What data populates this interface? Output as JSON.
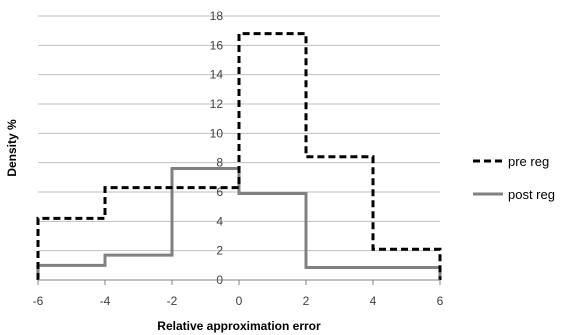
{
  "chart_data": {
    "type": "line",
    "title": "",
    "xlabel": "Relative approximation error",
    "ylabel": "Density %",
    "xlim": [
      -6,
      6
    ],
    "ylim": [
      0,
      18
    ],
    "x_ticks": [
      "-6",
      "-4",
      "-2",
      "0",
      "2",
      "4",
      "6"
    ],
    "y_ticks": [
      "0",
      "2",
      "4",
      "6",
      "8",
      "10",
      "12",
      "14",
      "16",
      "18"
    ],
    "grid": "horizontal",
    "legend_position": "right",
    "bin_edges": [
      -6,
      -4,
      -2,
      0,
      2,
      4,
      6
    ],
    "series": [
      {
        "name": "pre reg",
        "values": [
          4.2,
          6.3,
          6.3,
          16.8,
          8.4,
          2.1
        ],
        "color": "#000000",
        "dash": "dashed"
      },
      {
        "name": "post reg",
        "values": [
          1.0,
          1.7,
          7.6,
          5.9,
          0.85,
          0.85
        ],
        "color": "#808080",
        "dash": "solid"
      }
    ]
  }
}
